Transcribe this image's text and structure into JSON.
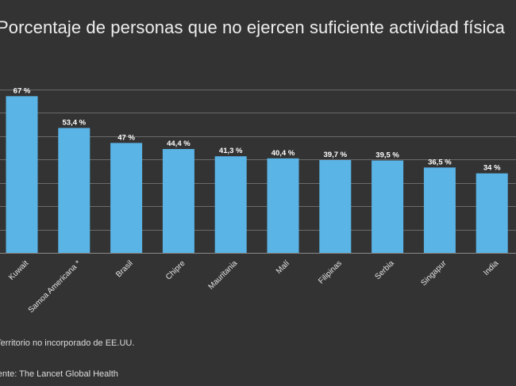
{
  "chart_data": {
    "type": "bar",
    "title": "Porcentaje de personas que no ejercen suficiente actividad física",
    "categories": [
      "Kuwait",
      "Samoa Americana *",
      "Brasil",
      "Chipre",
      "Mauritania",
      "Malí",
      "Filipinas",
      "Serbia",
      "Singapur",
      "India"
    ],
    "values": [
      67,
      53.4,
      47,
      44.4,
      41.3,
      40.4,
      39.7,
      39.5,
      36.5,
      34
    ],
    "value_labels": [
      "67 %",
      "53,4 %",
      "47 %",
      "44,4 %",
      "41,3 %",
      "40,4 %",
      "39,7 %",
      "39,5 %",
      "36,5 %",
      "34 %"
    ],
    "xlabel": "",
    "ylabel": "",
    "ylim": [
      0,
      70
    ],
    "grid": true,
    "bar_color": "#5ab4e6",
    "background_color": "#333333",
    "grid_color": "#6a6a6a"
  },
  "footnote": "* Territorio no incorporado de EE.UU.",
  "source": "Fuente: The Lancet Global Health"
}
